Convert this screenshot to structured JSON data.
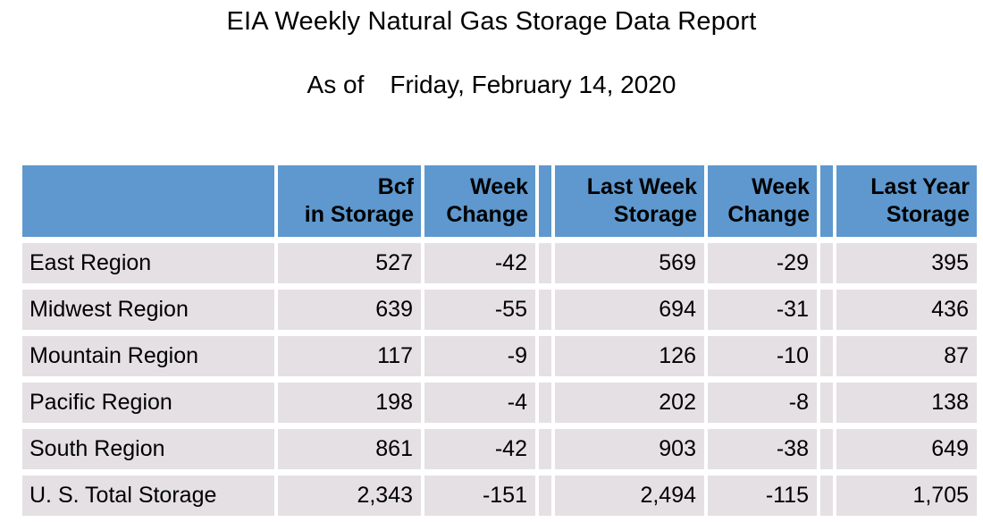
{
  "report": {
    "title": "EIA Weekly Natural Gas Storage Data Report",
    "as_of_prefix": "As of",
    "as_of_date": "Friday, February 14, 2020"
  },
  "colors": {
    "header_bg": "#5E98CE",
    "row_bg": "#E4E0E3",
    "text": "#000000",
    "page_bg": "#FFFFFF"
  },
  "table": {
    "headers": {
      "region": "",
      "bcf_line1": "Bcf",
      "bcf_line2": "in Storage",
      "week_change1_line1": "Week",
      "week_change1_line2": "Change",
      "last_week_line1": "Last Week",
      "last_week_line2": "Storage",
      "week_change2_line1": "Week",
      "week_change2_line2": "Change",
      "last_year_line1": "Last Year",
      "last_year_line2": "Storage"
    },
    "rows": [
      {
        "region": "East Region",
        "bcf": "527",
        "week_change1": "-42",
        "last_week": "569",
        "week_change2": "-29",
        "last_year": "395"
      },
      {
        "region": "Midwest Region",
        "bcf": "639",
        "week_change1": "-55",
        "last_week": "694",
        "week_change2": "-31",
        "last_year": "436"
      },
      {
        "region": "Mountain Region",
        "bcf": "117",
        "week_change1": "-9",
        "last_week": "126",
        "week_change2": "-10",
        "last_year": "87"
      },
      {
        "region": "Pacific Region",
        "bcf": "198",
        "week_change1": "-4",
        "last_week": "202",
        "week_change2": "-8",
        "last_year": "138"
      },
      {
        "region": "South Region",
        "bcf": "861",
        "week_change1": "-42",
        "last_week": "903",
        "week_change2": "-38",
        "last_year": "649"
      },
      {
        "region": "U. S. Total Storage",
        "bcf": "2,343",
        "week_change1": "-151",
        "last_week": "2,494",
        "week_change2": "-115",
        "last_year": "1,705"
      }
    ]
  }
}
